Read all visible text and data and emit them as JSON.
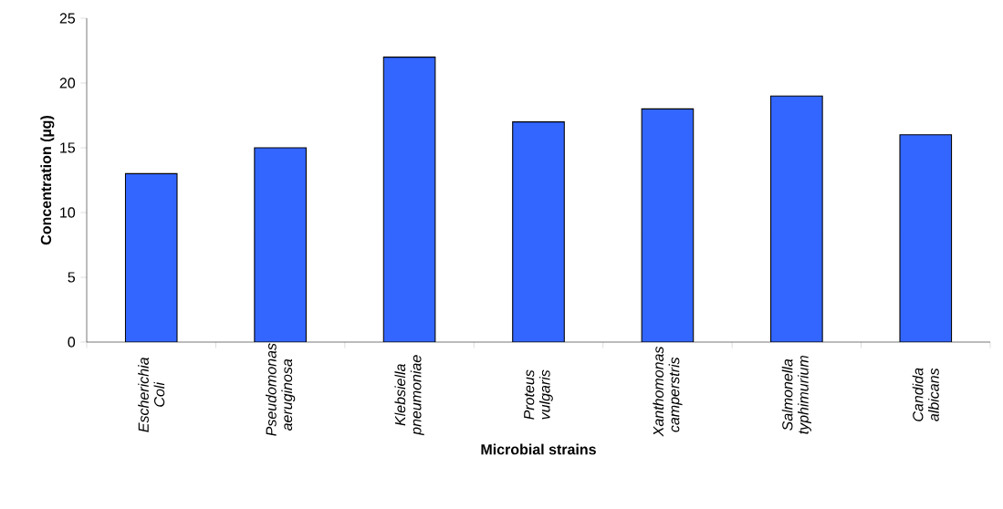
{
  "chart_data": {
    "type": "bar",
    "xlabel": "Microbial strains",
    "ylabel": "Concentration (µg)",
    "categories": [
      "Escherichia Coli",
      "Pseudomonas aeruginosa",
      "Klebsiella pneumoniae",
      "Proteus vulgaris",
      "Xanthomonas camperstris",
      "Salmonella typhimurium",
      "Candida albicans"
    ],
    "values": [
      13,
      15,
      22,
      17,
      18,
      19,
      16
    ],
    "color": "#3366ff",
    "ylim": [
      0,
      25
    ],
    "yticks": [
      0,
      5,
      10,
      15,
      20,
      25
    ],
    "grid": false
  }
}
